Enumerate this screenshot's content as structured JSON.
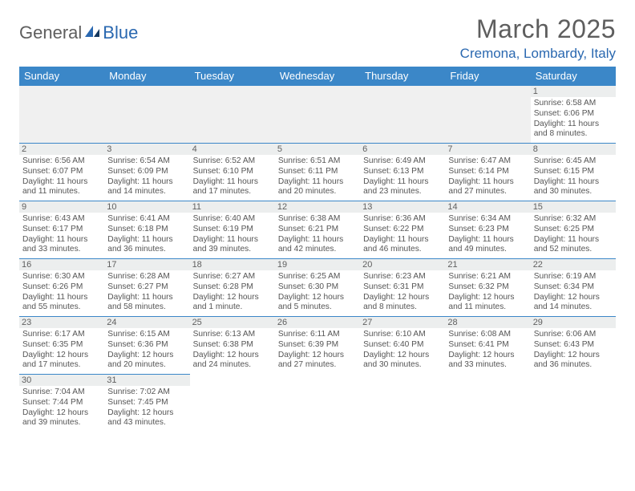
{
  "logo": {
    "word1": "General",
    "word2": "Blue"
  },
  "title": "March 2025",
  "location": "Cremona, Lombardy, Italy",
  "colors": {
    "header_bg": "#3b87c8",
    "header_text": "#ffffff",
    "cell_border": "#3b87c8",
    "daynum_bg": "#eceeee",
    "text": "#555555",
    "accent": "#2a68b0"
  },
  "weekdays": [
    "Sunday",
    "Monday",
    "Tuesday",
    "Wednesday",
    "Thursday",
    "Friday",
    "Saturday"
  ],
  "weeks": [
    [
      {
        "day": "",
        "sunrise": "",
        "sunset": "",
        "daylight": ""
      },
      {
        "day": "",
        "sunrise": "",
        "sunset": "",
        "daylight": ""
      },
      {
        "day": "",
        "sunrise": "",
        "sunset": "",
        "daylight": ""
      },
      {
        "day": "",
        "sunrise": "",
        "sunset": "",
        "daylight": ""
      },
      {
        "day": "",
        "sunrise": "",
        "sunset": "",
        "daylight": ""
      },
      {
        "day": "",
        "sunrise": "",
        "sunset": "",
        "daylight": ""
      },
      {
        "day": "1",
        "sunrise": "Sunrise: 6:58 AM",
        "sunset": "Sunset: 6:06 PM",
        "daylight": "Daylight: 11 hours and 8 minutes."
      }
    ],
    [
      {
        "day": "2",
        "sunrise": "Sunrise: 6:56 AM",
        "sunset": "Sunset: 6:07 PM",
        "daylight": "Daylight: 11 hours and 11 minutes."
      },
      {
        "day": "3",
        "sunrise": "Sunrise: 6:54 AM",
        "sunset": "Sunset: 6:09 PM",
        "daylight": "Daylight: 11 hours and 14 minutes."
      },
      {
        "day": "4",
        "sunrise": "Sunrise: 6:52 AM",
        "sunset": "Sunset: 6:10 PM",
        "daylight": "Daylight: 11 hours and 17 minutes."
      },
      {
        "day": "5",
        "sunrise": "Sunrise: 6:51 AM",
        "sunset": "Sunset: 6:11 PM",
        "daylight": "Daylight: 11 hours and 20 minutes."
      },
      {
        "day": "6",
        "sunrise": "Sunrise: 6:49 AM",
        "sunset": "Sunset: 6:13 PM",
        "daylight": "Daylight: 11 hours and 23 minutes."
      },
      {
        "day": "7",
        "sunrise": "Sunrise: 6:47 AM",
        "sunset": "Sunset: 6:14 PM",
        "daylight": "Daylight: 11 hours and 27 minutes."
      },
      {
        "day": "8",
        "sunrise": "Sunrise: 6:45 AM",
        "sunset": "Sunset: 6:15 PM",
        "daylight": "Daylight: 11 hours and 30 minutes."
      }
    ],
    [
      {
        "day": "9",
        "sunrise": "Sunrise: 6:43 AM",
        "sunset": "Sunset: 6:17 PM",
        "daylight": "Daylight: 11 hours and 33 minutes."
      },
      {
        "day": "10",
        "sunrise": "Sunrise: 6:41 AM",
        "sunset": "Sunset: 6:18 PM",
        "daylight": "Daylight: 11 hours and 36 minutes."
      },
      {
        "day": "11",
        "sunrise": "Sunrise: 6:40 AM",
        "sunset": "Sunset: 6:19 PM",
        "daylight": "Daylight: 11 hours and 39 minutes."
      },
      {
        "day": "12",
        "sunrise": "Sunrise: 6:38 AM",
        "sunset": "Sunset: 6:21 PM",
        "daylight": "Daylight: 11 hours and 42 minutes."
      },
      {
        "day": "13",
        "sunrise": "Sunrise: 6:36 AM",
        "sunset": "Sunset: 6:22 PM",
        "daylight": "Daylight: 11 hours and 46 minutes."
      },
      {
        "day": "14",
        "sunrise": "Sunrise: 6:34 AM",
        "sunset": "Sunset: 6:23 PM",
        "daylight": "Daylight: 11 hours and 49 minutes."
      },
      {
        "day": "15",
        "sunrise": "Sunrise: 6:32 AM",
        "sunset": "Sunset: 6:25 PM",
        "daylight": "Daylight: 11 hours and 52 minutes."
      }
    ],
    [
      {
        "day": "16",
        "sunrise": "Sunrise: 6:30 AM",
        "sunset": "Sunset: 6:26 PM",
        "daylight": "Daylight: 11 hours and 55 minutes."
      },
      {
        "day": "17",
        "sunrise": "Sunrise: 6:28 AM",
        "sunset": "Sunset: 6:27 PM",
        "daylight": "Daylight: 11 hours and 58 minutes."
      },
      {
        "day": "18",
        "sunrise": "Sunrise: 6:27 AM",
        "sunset": "Sunset: 6:28 PM",
        "daylight": "Daylight: 12 hours and 1 minute."
      },
      {
        "day": "19",
        "sunrise": "Sunrise: 6:25 AM",
        "sunset": "Sunset: 6:30 PM",
        "daylight": "Daylight: 12 hours and 5 minutes."
      },
      {
        "day": "20",
        "sunrise": "Sunrise: 6:23 AM",
        "sunset": "Sunset: 6:31 PM",
        "daylight": "Daylight: 12 hours and 8 minutes."
      },
      {
        "day": "21",
        "sunrise": "Sunrise: 6:21 AM",
        "sunset": "Sunset: 6:32 PM",
        "daylight": "Daylight: 12 hours and 11 minutes."
      },
      {
        "day": "22",
        "sunrise": "Sunrise: 6:19 AM",
        "sunset": "Sunset: 6:34 PM",
        "daylight": "Daylight: 12 hours and 14 minutes."
      }
    ],
    [
      {
        "day": "23",
        "sunrise": "Sunrise: 6:17 AM",
        "sunset": "Sunset: 6:35 PM",
        "daylight": "Daylight: 12 hours and 17 minutes."
      },
      {
        "day": "24",
        "sunrise": "Sunrise: 6:15 AM",
        "sunset": "Sunset: 6:36 PM",
        "daylight": "Daylight: 12 hours and 20 minutes."
      },
      {
        "day": "25",
        "sunrise": "Sunrise: 6:13 AM",
        "sunset": "Sunset: 6:38 PM",
        "daylight": "Daylight: 12 hours and 24 minutes."
      },
      {
        "day": "26",
        "sunrise": "Sunrise: 6:11 AM",
        "sunset": "Sunset: 6:39 PM",
        "daylight": "Daylight: 12 hours and 27 minutes."
      },
      {
        "day": "27",
        "sunrise": "Sunrise: 6:10 AM",
        "sunset": "Sunset: 6:40 PM",
        "daylight": "Daylight: 12 hours and 30 minutes."
      },
      {
        "day": "28",
        "sunrise": "Sunrise: 6:08 AM",
        "sunset": "Sunset: 6:41 PM",
        "daylight": "Daylight: 12 hours and 33 minutes."
      },
      {
        "day": "29",
        "sunrise": "Sunrise: 6:06 AM",
        "sunset": "Sunset: 6:43 PM",
        "daylight": "Daylight: 12 hours and 36 minutes."
      }
    ],
    [
      {
        "day": "30",
        "sunrise": "Sunrise: 7:04 AM",
        "sunset": "Sunset: 7:44 PM",
        "daylight": "Daylight: 12 hours and 39 minutes."
      },
      {
        "day": "31",
        "sunrise": "Sunrise: 7:02 AM",
        "sunset": "Sunset: 7:45 PM",
        "daylight": "Daylight: 12 hours and 43 minutes."
      },
      {
        "day": "",
        "sunrise": "",
        "sunset": "",
        "daylight": ""
      },
      {
        "day": "",
        "sunrise": "",
        "sunset": "",
        "daylight": ""
      },
      {
        "day": "",
        "sunrise": "",
        "sunset": "",
        "daylight": ""
      },
      {
        "day": "",
        "sunrise": "",
        "sunset": "",
        "daylight": ""
      },
      {
        "day": "",
        "sunrise": "",
        "sunset": "",
        "daylight": ""
      }
    ]
  ]
}
